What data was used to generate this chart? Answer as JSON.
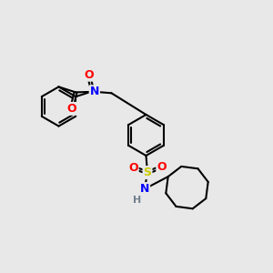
{
  "background_color": "#e8e8e8",
  "atoms": {
    "colors": {
      "C": "#000000",
      "N": "#0000ff",
      "O": "#ff0000",
      "S": "#cccc00",
      "H": "#708090"
    }
  },
  "bond_color": "#000000",
  "bond_width": 1.5,
  "figsize": [
    3.0,
    3.0
  ],
  "dpi": 100,
  "xlim": [
    0.0,
    10.0
  ],
  "ylim": [
    1.0,
    9.5
  ]
}
